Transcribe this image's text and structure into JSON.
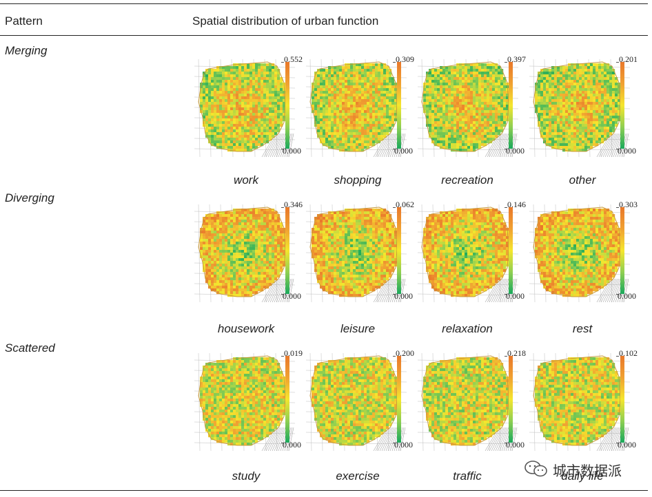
{
  "header": {
    "pattern_label": "Pattern",
    "distribution_label": "Spatial distribution of urban function"
  },
  "colors": {
    "high": "#e9782a",
    "mid": "#f5e62d",
    "low": "#1aa95c"
  },
  "rows": [
    {
      "pattern": "Merging",
      "maps": [
        {
          "name": "work",
          "max": "0.552",
          "min": "0.000",
          "bias": 0.55,
          "style": "center"
        },
        {
          "name": "shopping",
          "max": "0.309",
          "min": "0.000",
          "bias": 0.62,
          "style": "center"
        },
        {
          "name": "recreation",
          "max": "0.397",
          "min": "0.000",
          "bias": 0.5,
          "style": "center"
        },
        {
          "name": "other",
          "max": "0.201",
          "min": "0.000",
          "bias": 0.52,
          "style": "center"
        }
      ]
    },
    {
      "pattern": "Diverging",
      "maps": [
        {
          "name": "housework",
          "max": "0.346",
          "min": "0.000",
          "bias": 0.5,
          "style": "ring"
        },
        {
          "name": "leisure",
          "max": "0.062",
          "min": "0.000",
          "bias": 0.5,
          "style": "ring"
        },
        {
          "name": "relaxation",
          "max": "0.146",
          "min": "0.000",
          "bias": 0.5,
          "style": "ring"
        },
        {
          "name": "rest",
          "max": "0.303",
          "min": "0.000",
          "bias": 0.5,
          "style": "ring"
        }
      ]
    },
    {
      "pattern": "Scattered",
      "maps": [
        {
          "name": "study",
          "max": "0.019",
          "min": "0.000",
          "bias": 0.55,
          "style": "random"
        },
        {
          "name": "exercise",
          "max": "0.200",
          "min": "0.000",
          "bias": 0.58,
          "style": "random"
        },
        {
          "name": "traffic",
          "max": "0.218",
          "min": "0.000",
          "bias": 0.5,
          "style": "random"
        },
        {
          "name": "daily life",
          "max": "0.102",
          "min": "0.000",
          "bias": 0.52,
          "style": "random"
        }
      ]
    }
  ],
  "watermark": "城市数据派"
}
